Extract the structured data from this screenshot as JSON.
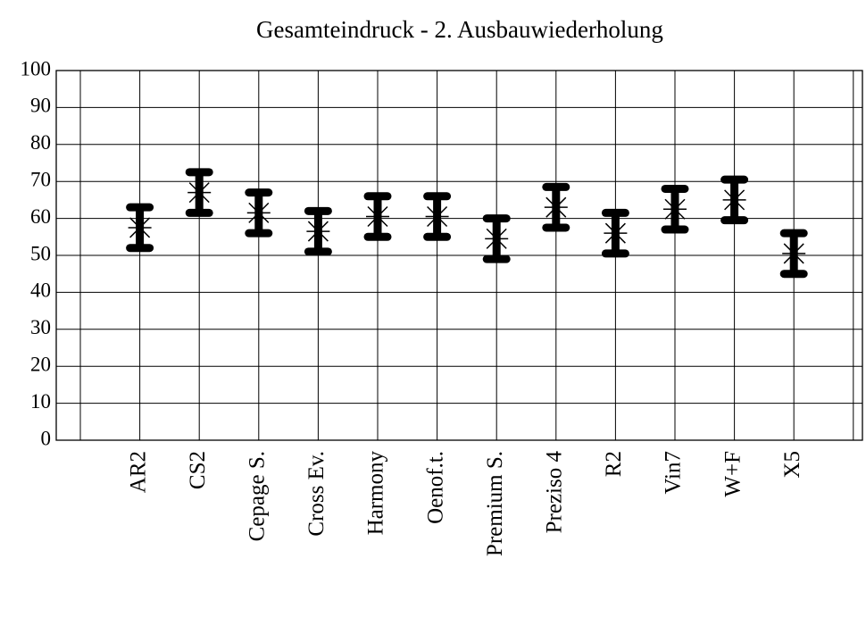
{
  "chart_data": {
    "type": "errorbar",
    "title": "Gesamteindruck - 2. Ausbauwiederholung",
    "categories": [
      "AR2",
      "CS2",
      "Cepage S.",
      "Cross Ev.",
      "Harmony",
      "Oenof.t.",
      "Premium S.",
      "Preziso 4",
      "R2",
      "Vin7",
      "W+F",
      "X5"
    ],
    "values": [
      57.5,
      67,
      61.5,
      56.5,
      60.5,
      60.5,
      54.5,
      63,
      56,
      62.5,
      65,
      50.5
    ],
    "errors": [
      5.5,
      5.5,
      5.5,
      5.5,
      5.5,
      5.5,
      5.5,
      5.5,
      5.5,
      5.5,
      5.5,
      5.5
    ],
    "color": "#000000",
    "ylim": [
      0,
      100
    ],
    "yticks": [
      0,
      10,
      20,
      30,
      40,
      50,
      60,
      70,
      80,
      90,
      100
    ],
    "grid": true
  }
}
